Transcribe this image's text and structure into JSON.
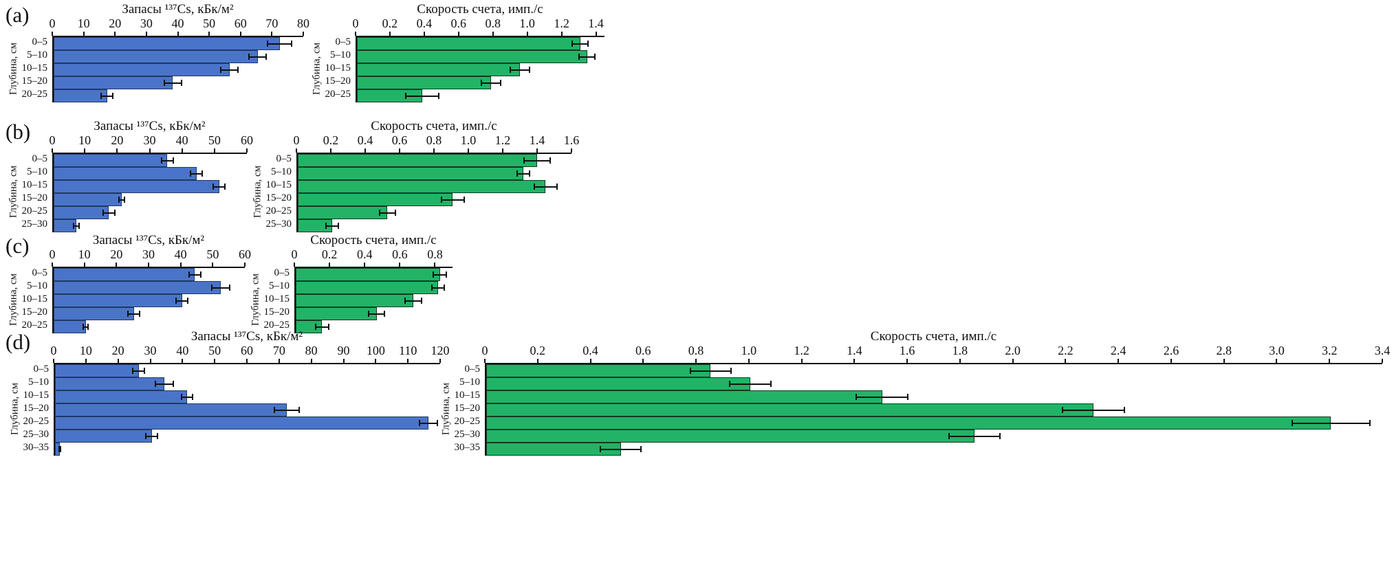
{
  "panel_labels": [
    "(a)",
    "(b)",
    "(c)",
    "(d)"
  ],
  "chart_data": [
    {
      "panel": "a",
      "type": "bar",
      "orientation": "horizontal",
      "title": "Запасы ¹³⁷Cs, кБк/м²",
      "ylabel": "Глубина, см",
      "color": "#4a74c8",
      "edge": "#1f3864",
      "xlim": [
        0,
        80
      ],
      "ticks": [
        "0",
        "10",
        "20",
        "30",
        "40",
        "50",
        "60",
        "70",
        "80"
      ],
      "categories": [
        "0–5",
        "5–10",
        "10–15",
        "15–20",
        "20–25"
      ],
      "values": [
        72,
        65,
        56,
        38,
        17
      ],
      "errors": [
        4,
        3,
        3,
        3,
        2
      ]
    },
    {
      "panel": "a",
      "type": "bar",
      "orientation": "horizontal",
      "title": "Скорость счета, имп./с",
      "ylabel": "Глубина, см",
      "color": "#22b366",
      "edge": "#123a22",
      "xlim": [
        0,
        1.45
      ],
      "ticks": [
        "0",
        "0.2",
        "0.4",
        "0.6",
        "0.8",
        "1.0",
        "1.2",
        "1.4"
      ],
      "categories": [
        "0–5",
        "5–10",
        "10–15",
        "15–20",
        "20–25"
      ],
      "values": [
        1.3,
        1.34,
        0.95,
        0.78,
        0.38
      ],
      "errors": [
        0.05,
        0.05,
        0.06,
        0.06,
        0.1
      ]
    },
    {
      "panel": "b",
      "type": "bar",
      "orientation": "horizontal",
      "title": "Запасы ¹³⁷Cs, кБк/м²",
      "ylabel": "Глубина, см",
      "color": "#4a74c8",
      "edge": "#1f3864",
      "xlim": [
        0,
        60
      ],
      "ticks": [
        "0",
        "10",
        "20",
        "30",
        "40",
        "50",
        "60"
      ],
      "categories": [
        "0–5",
        "5–10",
        "10–15",
        "15–20",
        "20–25",
        "25–30"
      ],
      "values": [
        35,
        44,
        51,
        21,
        17,
        7
      ],
      "errors": [
        2,
        2,
        2,
        1,
        2,
        1
      ]
    },
    {
      "panel": "b",
      "type": "bar",
      "orientation": "horizontal",
      "title": "Скорость счета, имп./с",
      "ylabel": "Глубина, см",
      "color": "#22b366",
      "edge": "#123a22",
      "xlim": [
        0,
        1.6
      ],
      "ticks": [
        "0",
        "0.2",
        "0.4",
        "0.6",
        "0.8",
        "1.0",
        "1.2",
        "1.4",
        "1.6"
      ],
      "categories": [
        "0–5",
        "5–10",
        "10–15",
        "15–20",
        "20–25",
        "25–30"
      ],
      "values": [
        1.39,
        1.31,
        1.44,
        0.9,
        0.52,
        0.2
      ],
      "errors": [
        0.08,
        0.04,
        0.07,
        0.07,
        0.05,
        0.04
      ]
    },
    {
      "panel": "c",
      "type": "bar",
      "orientation": "horizontal",
      "title": "Запасы ¹³⁷Cs, кБк/м²",
      "ylabel": "Глубина, см",
      "color": "#4a74c8",
      "edge": "#1f3864",
      "xlim": [
        0,
        60
      ],
      "ticks": [
        "0",
        "10",
        "20",
        "30",
        "40",
        "50",
        "60"
      ],
      "categories": [
        "0–5",
        "5–10",
        "10–15",
        "15–20",
        "20–25"
      ],
      "values": [
        44,
        52,
        40,
        25,
        10
      ],
      "errors": [
        2,
        3,
        2,
        2,
        1
      ]
    },
    {
      "panel": "c",
      "type": "bar",
      "orientation": "horizontal",
      "title": "Скорость счета, имп./с",
      "ylabel": "Глубина, см",
      "color": "#22b366",
      "edge": "#123a22",
      "xlim": [
        0,
        0.9
      ],
      "ticks": [
        "0",
        "0.2",
        "0.4",
        "0.6",
        "0.8"
      ],
      "categories": [
        "0–5",
        "5–10",
        "10–15",
        "15–20",
        "20–25"
      ],
      "values": [
        0.82,
        0.81,
        0.67,
        0.46,
        0.15
      ],
      "errors": [
        0.04,
        0.04,
        0.05,
        0.05,
        0.04
      ]
    },
    {
      "panel": "d",
      "type": "bar",
      "orientation": "horizontal",
      "title": "Запасы ¹³⁷Cs, кБк/м²",
      "ylabel": "Глубина, см",
      "color": "#4a74c8",
      "edge": "#1f3864",
      "xlim": [
        0,
        120
      ],
      "ticks": [
        "0",
        "10",
        "20",
        "30",
        "40",
        "50",
        "60",
        "70",
        "80",
        "90",
        "100",
        "110",
        "120"
      ],
      "categories": [
        "0–5",
        "5–10",
        "10–15",
        "15–20",
        "20–25",
        "25–30",
        "30–35"
      ],
      "values": [
        26,
        34,
        41,
        72,
        116,
        30,
        1.5
      ],
      "errors": [
        2,
        3,
        2,
        4,
        3,
        2,
        0.5
      ]
    },
    {
      "panel": "d",
      "type": "bar",
      "orientation": "horizontal",
      "title": "Скорость счета, имп./с",
      "ylabel": "Глубина, см",
      "color": "#22b366",
      "edge": "#123a22",
      "xlim": [
        0,
        3.4
      ],
      "ticks": [
        "0",
        "0.2",
        "0.4",
        "0.6",
        "0.8",
        "1.0",
        "1.2",
        "1.4",
        "1.6",
        "1.8",
        "2.0",
        "2.2",
        "2.4",
        "2.6",
        "2.8",
        "3.0",
        "3.2",
        "3.4"
      ],
      "categories": [
        "0–5",
        "5–10",
        "10–15",
        "15–20",
        "20–25",
        "25–30",
        "30–35"
      ],
      "values": [
        0.85,
        1.0,
        1.5,
        2.3,
        3.2,
        1.85,
        0.51
      ],
      "errors": [
        0.08,
        0.08,
        0.1,
        0.12,
        0.15,
        0.1,
        0.08
      ]
    }
  ]
}
